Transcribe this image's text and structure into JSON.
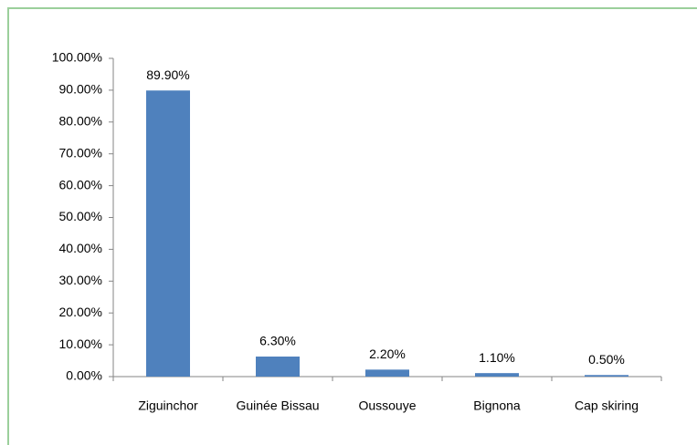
{
  "chart_data": {
    "type": "bar",
    "categories": [
      "Ziguinchor",
      "Guinée Bissau",
      "Oussouye",
      "Bignona",
      "Cap skiring"
    ],
    "values": [
      89.9,
      6.3,
      2.2,
      1.1,
      0.5
    ],
    "value_labels": [
      "89.90%",
      "6.30%",
      "2.20%",
      "1.10%",
      "0.50%"
    ],
    "color": "#4f81bd",
    "ylim": [
      0,
      100
    ],
    "yticks": [
      {
        "value": 0,
        "label": "0.00%"
      },
      {
        "value": 10,
        "label": "10.00%"
      },
      {
        "value": 20,
        "label": "20.00%"
      },
      {
        "value": 30,
        "label": "30.00%"
      },
      {
        "value": 40,
        "label": "40.00%"
      },
      {
        "value": 50,
        "label": "50.00%"
      },
      {
        "value": 60,
        "label": "60.00%"
      },
      {
        "value": 70,
        "label": "70.00%"
      },
      {
        "value": 80,
        "label": "80.00%"
      },
      {
        "value": 90,
        "label": "90.00%"
      },
      {
        "value": 100,
        "label": "100.00%"
      }
    ],
    "grid": false
  }
}
